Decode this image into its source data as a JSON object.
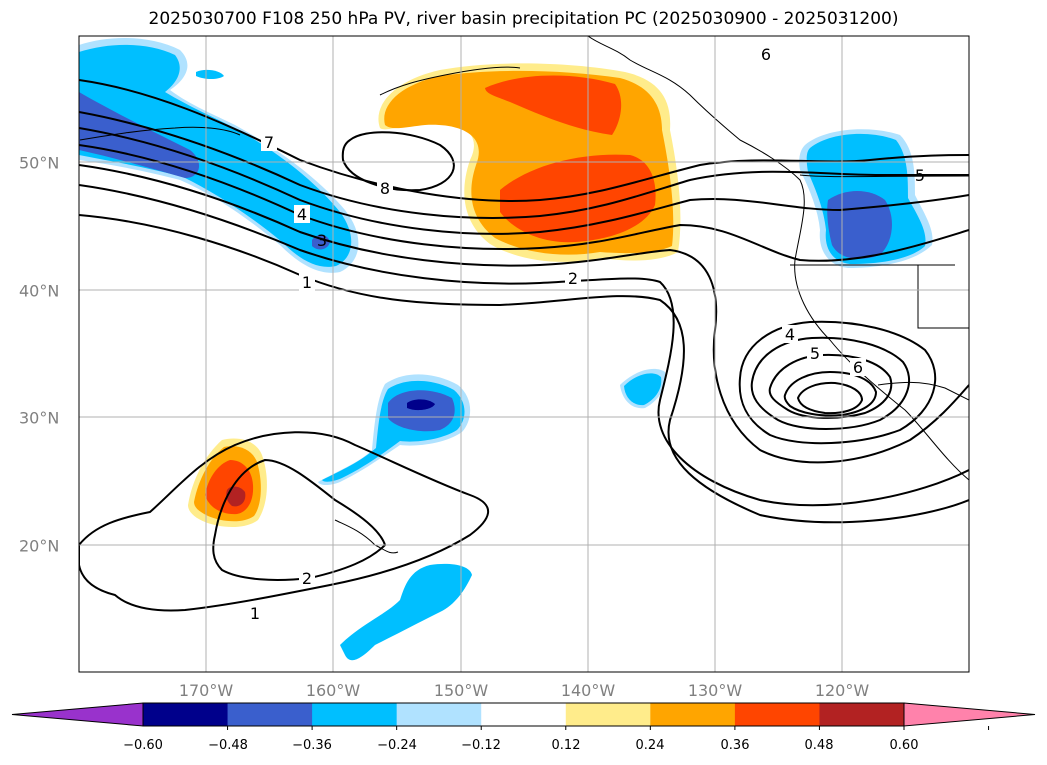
{
  "title": "2025030700 F108 250 hPa PV, river basin precipitation PC (2025030900 - 2025031200)",
  "lon_labels": [
    "170°W",
    "160°W",
    "150°W",
    "140°W",
    "130°W",
    "120°W"
  ],
  "lat_labels": [
    "50°N",
    "40°N",
    "30°N",
    "20°N"
  ],
  "colorbar": {
    "tick_labels": [
      "−0.60",
      "−0.48",
      "−0.36",
      "−0.24",
      "−0.12",
      "0.12",
      "0.24",
      "0.36",
      "0.48",
      "0.60"
    ],
    "colors": [
      "#9932cc",
      "#00008b",
      "#3a5fcd",
      "#00bfff",
      "#b0e2ff",
      "#ffffff",
      "#ffec8b",
      "#ffa500",
      "#ff4500",
      "#b22222",
      "#ff82ab"
    ]
  },
  "contour_labels": [
    "7",
    "4",
    "3",
    "1",
    "8",
    "2",
    "6",
    "4",
    "5",
    "6",
    "5",
    "2",
    "1"
  ]
}
